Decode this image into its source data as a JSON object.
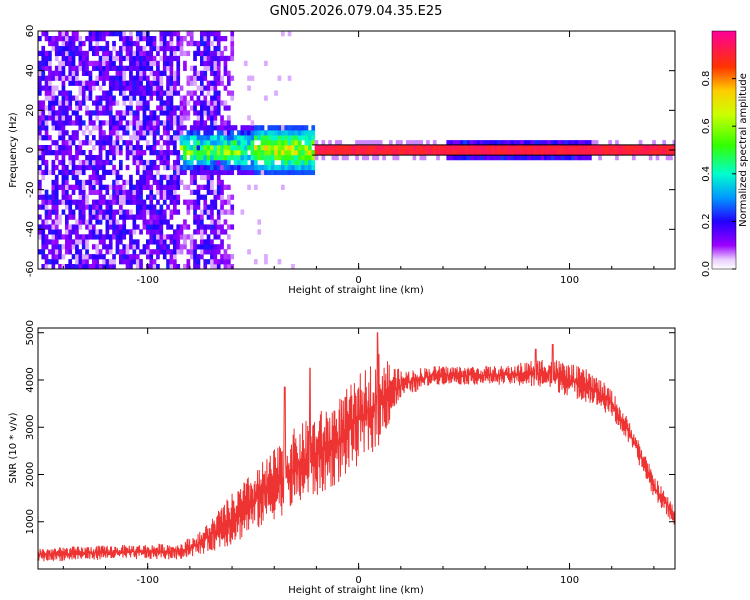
{
  "title": "GN05.2026.079.04.35.E25",
  "chart_data": [
    {
      "type": "heatmap",
      "xlabel": "Height of straight line (km)",
      "ylabel": "Frequency (Hz)",
      "xlim": [
        -152,
        150
      ],
      "ylim": [
        -60,
        60
      ],
      "x_ticks": [
        -100,
        0,
        100
      ],
      "y_ticks": [
        -60,
        -40,
        -20,
        0,
        20,
        40,
        60
      ],
      "colorbar": {
        "label": "Normalized spectral amplitude",
        "range": [
          0,
          1
        ],
        "ticks": [
          0.0,
          0.2,
          0.4,
          0.6,
          0.8
        ]
      },
      "grid": false
    },
    {
      "type": "line",
      "xlabel": "Height of straight line (km)",
      "ylabel": "SNR (10 * v/v)",
      "xlim": [
        -152,
        150
      ],
      "ylim": [
        0,
        5100
      ],
      "x_ticks": [
        -100,
        0,
        100
      ],
      "y_ticks": [
        1000,
        2000,
        3000,
        4000,
        5000
      ],
      "color": "#ee3333",
      "envelope": {
        "x": [
          -152,
          -120,
          -85,
          -75,
          -60,
          -45,
          -30,
          -20,
          -10,
          0,
          10,
          20,
          35,
          50,
          70,
          90,
          110,
          120,
          130,
          140,
          150
        ],
        "low": [
          150,
          200,
          200,
          300,
          500,
          900,
          1300,
          1500,
          1800,
          2200,
          2600,
          3600,
          3900,
          3900,
          3900,
          3800,
          3500,
          3200,
          2500,
          1500,
          900
        ],
        "high": [
          450,
          500,
          550,
          800,
          1600,
          2300,
          3000,
          3300,
          3600,
          4100,
          4600,
          4200,
          4300,
          4300,
          4300,
          4500,
          4200,
          3800,
          3000,
          2000,
          1300
        ]
      },
      "spikes": [
        {
          "x": 9,
          "y": 5000
        },
        {
          "x": 92,
          "y": 4750
        },
        {
          "x": 84,
          "y": 4650
        },
        {
          "x": -23,
          "y": 4250
        },
        {
          "x": -35,
          "y": 3850
        }
      ],
      "grid": false
    }
  ]
}
